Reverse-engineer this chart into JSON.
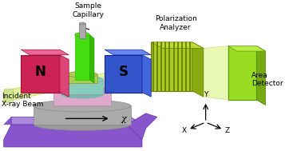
{
  "background_color": "#ffffff",
  "fig_width": 3.57,
  "fig_height": 1.89,
  "labels": {
    "sample_capillary": "Sample\nCapillary",
    "polarization_analyzer": "Polarization\nAnalyzer",
    "area_detector": "Area\nDetector",
    "incident_beam": "Incident\nX-ray Beam",
    "chi": "χ",
    "N": "N",
    "S": "S",
    "Y": "Y",
    "X": "X",
    "Z": "Z"
  },
  "colors": {
    "n_magnet_front": "#cc2255",
    "n_magnet_side": "#dd4477",
    "n_magnet_top": "#ee6699",
    "s_magnet_front": "#3355cc",
    "s_magnet_side": "#4466dd",
    "s_magnet_top": "#6688ee",
    "beam_fill": "#ccee55",
    "beam_edge": "#aabb33",
    "capillary_body": "#44dd11",
    "capillary_side": "#33bb00",
    "capillary_tip": "#aaaaaa",
    "analyzer_fill": "#aacc22",
    "analyzer_stripe": "#667700",
    "analyzer_side": "#88aa11",
    "analyzer_top": "#bbdd33",
    "detector_fill": "#99dd22",
    "detector_side": "#77aa11",
    "detector_top": "#bbee44",
    "stage_purple": "#8855cc",
    "stage_purple_dark": "#6633aa",
    "stage_gray": "#aaaaaa",
    "stage_gray_dark": "#888888",
    "stage_teal": "#88ccbb",
    "stage_teal_dark": "#66aaaa",
    "stage_pink": "#ddaacc",
    "stage_pink_dark": "#bb88aa",
    "stage_olive": "#aacc55",
    "label_color": "#000000"
  }
}
